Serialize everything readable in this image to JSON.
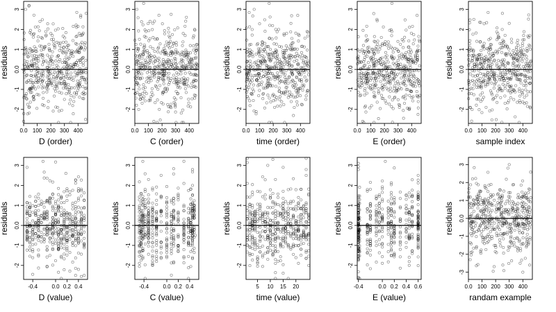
{
  "figure": {
    "rows": 2,
    "cols": 5
  },
  "chart_data": [
    {
      "type": "scatter",
      "ylabel": "residuals",
      "xlabel": "D (order)",
      "xlim": [
        0,
        470
      ],
      "ylim": [
        -2.7,
        3.4
      ],
      "xticks": [
        0,
        100,
        200,
        300,
        400
      ],
      "yticks": [
        -2,
        -1,
        0,
        1,
        2,
        3
      ],
      "hline": 0,
      "seed": 11,
      "n": 470,
      "pattern": "order",
      "points": [
        [
          0,
          -2.6
        ],
        [
          15,
          3.0
        ],
        [
          40,
          3.2
        ],
        [
          120,
          2.4
        ],
        [
          250,
          -1.9
        ],
        [
          300,
          -1.5
        ],
        [
          420,
          2.7
        ],
        [
          455,
          -2.5
        ],
        [
          460,
          2.8
        ]
      ]
    },
    {
      "type": "scatter",
      "ylabel": "residuals",
      "xlabel": "C (order)",
      "xlim": [
        0,
        470
      ],
      "ylim": [
        -2.7,
        3.4
      ],
      "xticks": [
        0,
        100,
        200,
        300,
        400
      ],
      "yticks": [
        -2,
        -1,
        0,
        1,
        2,
        3
      ],
      "hline": 0,
      "seed": 23,
      "n": 470,
      "pattern": "order",
      "points": [
        [
          15,
          3.0
        ],
        [
          65,
          3.3
        ],
        [
          140,
          -2.6
        ],
        [
          180,
          -2.0
        ],
        [
          300,
          -1.5
        ],
        [
          440,
          2.0
        ],
        [
          450,
          0.3
        ]
      ]
    },
    {
      "type": "scatter",
      "ylabel": "residuals",
      "xlabel": "time (order)",
      "xlim": [
        0,
        470
      ],
      "ylim": [
        -2.7,
        3.4
      ],
      "xticks": [
        0,
        100,
        200,
        300,
        400
      ],
      "yticks": [
        -2,
        -1,
        0,
        1,
        2,
        3
      ],
      "hline": 0,
      "seed": 37,
      "n": 470,
      "pattern": "order",
      "points": [
        [
          60,
          3.0
        ],
        [
          170,
          3.3
        ],
        [
          210,
          -1.9
        ],
        [
          240,
          2.0
        ],
        [
          380,
          2.7
        ],
        [
          440,
          -1.5
        ]
      ]
    },
    {
      "type": "scatter",
      "ylabel": "residuals",
      "xlabel": "E (order)",
      "xlim": [
        0,
        470
      ],
      "ylim": [
        -2.7,
        3.4
      ],
      "xticks": [
        0,
        100,
        200,
        300,
        400
      ],
      "yticks": [
        -2,
        -1,
        0,
        1,
        2,
        3
      ],
      "hline": 0,
      "seed": 41,
      "n": 470,
      "pattern": "order",
      "points": [
        [
          40,
          -2.6
        ],
        [
          145,
          2.5
        ],
        [
          255,
          3.3
        ],
        [
          310,
          -1.9
        ],
        [
          440,
          2.7
        ],
        [
          460,
          -1.3
        ]
      ]
    },
    {
      "type": "scatter",
      "ylabel": "residuals",
      "xlabel": "sample index",
      "xlim": [
        0,
        470
      ],
      "ylim": [
        -2.7,
        3.4
      ],
      "xticks": [
        0,
        100,
        200,
        300,
        400
      ],
      "yticks": [
        -2,
        -1,
        0,
        1,
        2,
        3
      ],
      "hline": 0,
      "seed": 53,
      "n": 470,
      "pattern": "order",
      "points": [
        [
          40,
          2.5
        ],
        [
          130,
          -1.9
        ],
        [
          180,
          -1.5
        ],
        [
          250,
          2.8
        ],
        [
          300,
          2.3
        ]
      ]
    },
    {
      "type": "scatter",
      "ylabel": "residuals",
      "xlabel": "D (value)",
      "xlim": [
        -0.56,
        0.56
      ],
      "ylim": [
        -2.7,
        3.4
      ],
      "xticks": [
        -0.4,
        0.0,
        0.2,
        0.4
      ],
      "yticks": [
        -2,
        -1,
        0,
        1,
        2,
        3
      ],
      "hline": 0,
      "seed": 67,
      "n": 470,
      "pattern": "discrete",
      "levels": [
        -0.5,
        -0.45,
        -0.4,
        -0.35,
        -0.3,
        -0.25,
        -0.2,
        -0.15,
        -0.1,
        -0.05,
        0.0,
        0.05,
        0.1,
        0.15,
        0.2,
        0.25,
        0.3,
        0.35,
        0.4,
        0.45,
        0.5
      ],
      "points": [
        [
          -0.5,
          2.9
        ],
        [
          -0.22,
          3.2
        ],
        [
          0.18,
          2.6
        ],
        [
          0.35,
          -2.5
        ],
        [
          0.5,
          -2.5
        ]
      ]
    },
    {
      "type": "scatter",
      "ylabel": "residuals",
      "xlabel": "C (value)",
      "xlim": [
        -0.56,
        0.56
      ],
      "ylim": [
        -2.7,
        3.4
      ],
      "xticks": [
        -0.4,
        0.0,
        0.2,
        0.4
      ],
      "yticks": [
        -2,
        -1,
        0,
        1,
        2,
        3
      ],
      "hline": 0,
      "seed": 79,
      "n": 470,
      "pattern": "discrete",
      "levels": [
        -0.48,
        -0.45,
        -0.42,
        -0.38,
        -0.32,
        -0.25,
        -0.18,
        -0.1,
        0.0,
        0.08,
        0.12,
        0.2,
        0.3,
        0.38,
        0.42,
        0.45,
        0.48
      ],
      "points": [
        [
          -0.42,
          3.2
        ],
        [
          -0.25,
          -2.0
        ],
        [
          0.45,
          2.0
        ],
        [
          0.5,
          -0.5
        ]
      ]
    },
    {
      "type": "scatter",
      "ylabel": "residuals",
      "xlabel": "time (value)",
      "xlim": [
        0.5,
        25.5
      ],
      "ylim": [
        -2.7,
        3.4
      ],
      "xticks": [
        5,
        10,
        15,
        20
      ],
      "yticks": [
        -2,
        -1,
        0,
        1,
        2,
        3
      ],
      "hline": 0,
      "seed": 97,
      "n": 470,
      "pattern": "discrete",
      "levels": [
        1,
        2,
        3,
        4,
        5,
        6,
        7,
        8,
        9,
        10,
        11,
        12,
        13,
        14,
        15,
        16,
        17,
        18,
        19,
        20,
        21,
        22,
        23,
        24,
        25
      ],
      "points": [
        [
          9,
          3.0
        ],
        [
          11,
          3.3
        ],
        [
          12,
          -1.9
        ],
        [
          15,
          2.9
        ],
        [
          24,
          2.5
        ]
      ]
    },
    {
      "type": "scatter",
      "ylabel": "residuals",
      "xlabel": "E (value)",
      "xlim": [
        -0.42,
        0.65
      ],
      "ylim": [
        -2.7,
        3.4
      ],
      "xticks": [
        -0.4,
        0.0,
        0.2,
        0.4,
        0.6
      ],
      "yticks": [
        -2,
        -1,
        0,
        1,
        2,
        3
      ],
      "hline": 0,
      "seed": 131,
      "n": 470,
      "pattern": "discrete",
      "levels": [
        -0.4,
        -0.4,
        -0.4,
        -0.4,
        -0.38,
        -0.25,
        -0.2,
        -0.1,
        -0.05,
        0.0,
        0.1,
        0.15,
        0.2,
        0.3,
        0.4,
        0.45,
        0.5,
        0.6,
        0.6,
        0.6
      ],
      "points": [
        [
          -0.4,
          -2.6
        ],
        [
          -0.4,
          3.1
        ],
        [
          0.05,
          3.2
        ],
        [
          0.45,
          -2.0
        ],
        [
          0.6,
          2.5
        ]
      ]
    },
    {
      "type": "scatter",
      "ylabel": "residuals",
      "xlabel": "randam example",
      "xlim": [
        0,
        470
      ],
      "ylim": [
        -3.4,
        3.4
      ],
      "xticks": [
        0,
        100,
        200,
        300,
        400
      ],
      "yticks": [
        -3,
        -2,
        -1,
        0,
        1,
        2,
        3
      ],
      "hline": 0,
      "seed": 151,
      "n": 470,
      "pattern": "random",
      "points": [
        [
          300,
          3.0
        ],
        [
          290,
          2.8
        ],
        [
          380,
          -2.5
        ],
        [
          30,
          2.2
        ],
        [
          450,
          -2.6
        ],
        [
          400,
          -3.0
        ]
      ]
    }
  ]
}
